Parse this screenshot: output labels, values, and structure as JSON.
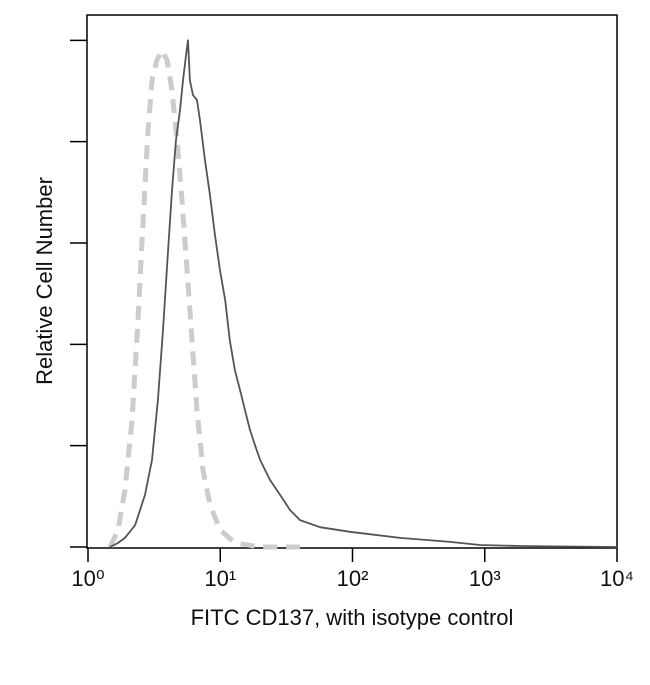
{
  "chart_data": {
    "type": "line",
    "x_label": "FITC CD137, with isotype control",
    "y_label": "Relative Cell Number",
    "xscale": "log",
    "xlim": [
      1,
      10000
    ],
    "xticks": [
      {
        "value": 1,
        "label": "10⁰"
      },
      {
        "value": 10,
        "label": "10¹"
      },
      {
        "value": 100,
        "label": "10²"
      },
      {
        "value": 1000,
        "label": "10³"
      },
      {
        "value": 10000,
        "label": "10⁴"
      }
    ],
    "ylim": [
      0,
      105
    ],
    "yticks": [
      0,
      20,
      40,
      60,
      80,
      100
    ],
    "series": [
      {
        "color": "#555555",
        "dashed": false,
        "x": [
          1.47,
          1.69,
          1.9,
          2.27,
          2.7,
          3.05,
          3.38,
          3.69,
          4.03,
          4.32,
          4.63,
          4.96,
          5.23,
          5.51,
          5.7,
          5.9,
          6.22,
          6.67,
          7.03,
          7.67,
          8.36,
          9.12,
          9.95,
          10.9,
          11.8,
          12.9,
          14.1,
          15.4,
          16.8,
          18.3,
          20.0,
          23.8,
          28.3,
          33.7,
          40.1,
          56.8,
          95.7,
          229,
          546,
          920,
          1848,
          10000
        ],
        "values": [
          0,
          0.8,
          1.8,
          4.3,
          10.3,
          17.2,
          29.0,
          42.8,
          58.6,
          70.4,
          80.3,
          86.2,
          92.1,
          97.0,
          100,
          92.1,
          89.2,
          88.2,
          84.2,
          76.3,
          69.4,
          61.5,
          54.6,
          48.7,
          40.8,
          34.9,
          31.0,
          27.0,
          23.1,
          20.1,
          17.2,
          13.2,
          10.3,
          7.3,
          5.3,
          3.9,
          3.0,
          1.8,
          1.0,
          0.4,
          0.2,
          0
        ]
      },
      {
        "color": "#cccccc",
        "dashed": true,
        "x": [
          1.47,
          1.69,
          1.9,
          2.15,
          2.39,
          2.61,
          2.84,
          3.05,
          3.32,
          3.63,
          3.96,
          4.32,
          4.71,
          5.14,
          5.61,
          6.11,
          6.67,
          7.41,
          8.36,
          9.95,
          12.9,
          20.0,
          40.1
        ],
        "values": [
          0,
          3.4,
          11.2,
          25.0,
          44.8,
          64.5,
          82.2,
          92.1,
          96.1,
          98.0,
          96.1,
          90.1,
          80.3,
          68.4,
          54.6,
          40.8,
          27.0,
          15.2,
          8.3,
          3.4,
          0.8,
          0,
          0
        ]
      }
    ]
  }
}
